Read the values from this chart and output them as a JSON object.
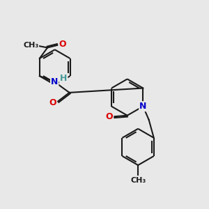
{
  "bg_color": "#e8e8e8",
  "bond_color": "#1a1a1a",
  "bond_width": 1.5,
  "atom_colors": {
    "O": "#dd0000",
    "N": "#0000cc",
    "H": "#449999",
    "C": "#1a1a1a"
  },
  "font_size_atom": 9,
  "figsize": [
    3.0,
    3.0
  ],
  "dpi": 100
}
